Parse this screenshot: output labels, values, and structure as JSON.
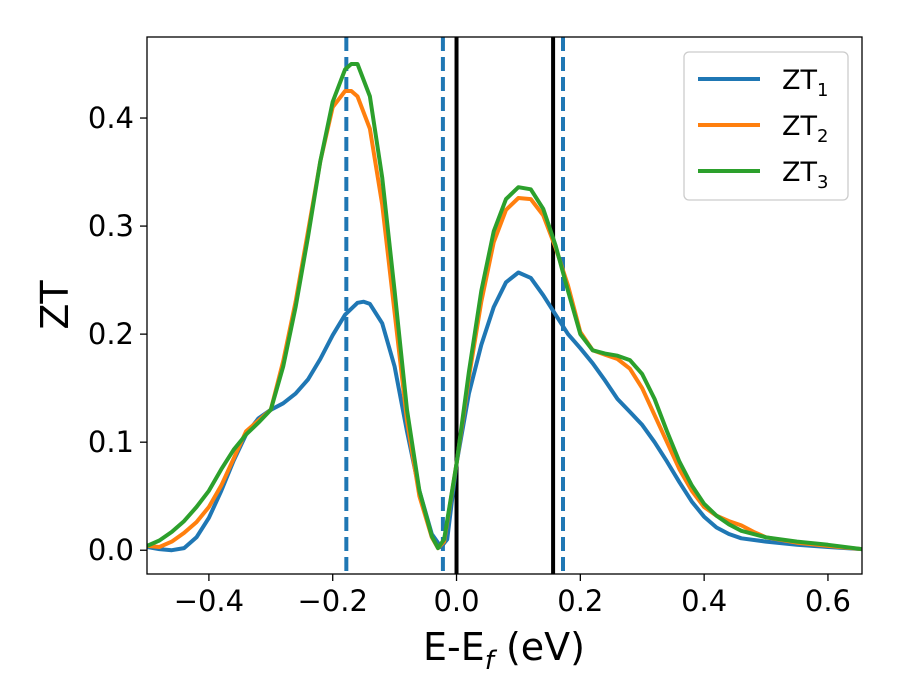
{
  "chart_data": {
    "type": "line",
    "xlabel": "E-E",
    "xlabel_sub": "f",
    "xlabel_unit": " (eV)",
    "ylabel": "ZT",
    "xlim": [
      -0.5,
      0.655
    ],
    "ylim": [
      -0.022,
      0.475
    ],
    "x_ticks": [
      -0.4,
      -0.2,
      0.0,
      0.2,
      0.4,
      0.6
    ],
    "x_tick_labels": [
      "−0.4",
      "−0.2",
      "0.0",
      "0.2",
      "0.4",
      "0.6"
    ],
    "y_ticks": [
      0.0,
      0.1,
      0.2,
      0.3,
      0.4
    ],
    "y_tick_labels": [
      "0.0",
      "0.1",
      "0.2",
      "0.3",
      "0.4"
    ],
    "grid": false,
    "legend_position": "top-right",
    "vlines": [
      {
        "x": -0.178,
        "style": "dashed",
        "color": "#1f77b4"
      },
      {
        "x": -0.022,
        "style": "dashed",
        "color": "#1f77b4"
      },
      {
        "x": 0.0,
        "style": "solid",
        "color": "#000000"
      },
      {
        "x": 0.156,
        "style": "solid",
        "color": "#000000"
      },
      {
        "x": 0.172,
        "style": "dashed",
        "color": "#1f77b4"
      }
    ],
    "series": [
      {
        "name": "ZT",
        "name_sub": "1",
        "color": "#1f77b4",
        "points": [
          [
            -0.5,
            0.003
          ],
          [
            -0.48,
            0.001
          ],
          [
            -0.46,
            0.0
          ],
          [
            -0.44,
            0.002
          ],
          [
            -0.42,
            0.012
          ],
          [
            -0.4,
            0.03
          ],
          [
            -0.38,
            0.055
          ],
          [
            -0.36,
            0.083
          ],
          [
            -0.34,
            0.107
          ],
          [
            -0.32,
            0.122
          ],
          [
            -0.3,
            0.13
          ],
          [
            -0.28,
            0.136
          ],
          [
            -0.26,
            0.145
          ],
          [
            -0.24,
            0.158
          ],
          [
            -0.22,
            0.177
          ],
          [
            -0.2,
            0.199
          ],
          [
            -0.18,
            0.218
          ],
          [
            -0.16,
            0.229
          ],
          [
            -0.15,
            0.23
          ],
          [
            -0.14,
            0.228
          ],
          [
            -0.12,
            0.21
          ],
          [
            -0.1,
            0.17
          ],
          [
            -0.08,
            0.11
          ],
          [
            -0.06,
            0.055
          ],
          [
            -0.04,
            0.015
          ],
          [
            -0.025,
            0.003
          ],
          [
            -0.015,
            0.01
          ],
          [
            0.0,
            0.08
          ],
          [
            0.02,
            0.145
          ],
          [
            0.04,
            0.19
          ],
          [
            0.06,
            0.225
          ],
          [
            0.08,
            0.248
          ],
          [
            0.1,
            0.257
          ],
          [
            0.12,
            0.252
          ],
          [
            0.14,
            0.236
          ],
          [
            0.16,
            0.218
          ],
          [
            0.18,
            0.2
          ],
          [
            0.2,
            0.187
          ],
          [
            0.22,
            0.173
          ],
          [
            0.24,
            0.157
          ],
          [
            0.26,
            0.14
          ],
          [
            0.28,
            0.128
          ],
          [
            0.3,
            0.116
          ],
          [
            0.32,
            0.1
          ],
          [
            0.34,
            0.082
          ],
          [
            0.36,
            0.063
          ],
          [
            0.38,
            0.045
          ],
          [
            0.4,
            0.031
          ],
          [
            0.42,
            0.021
          ],
          [
            0.44,
            0.015
          ],
          [
            0.46,
            0.011
          ],
          [
            0.5,
            0.008
          ],
          [
            0.55,
            0.005
          ],
          [
            0.6,
            0.003
          ],
          [
            0.655,
            0.001
          ]
        ]
      },
      {
        "name": "ZT",
        "name_sub": "2",
        "color": "#ff7f0e",
        "points": [
          [
            -0.5,
            0.004
          ],
          [
            -0.48,
            0.003
          ],
          [
            -0.46,
            0.008
          ],
          [
            -0.44,
            0.016
          ],
          [
            -0.42,
            0.026
          ],
          [
            -0.4,
            0.04
          ],
          [
            -0.38,
            0.06
          ],
          [
            -0.36,
            0.085
          ],
          [
            -0.34,
            0.11
          ],
          [
            -0.32,
            0.12
          ],
          [
            -0.3,
            0.13
          ],
          [
            -0.28,
            0.175
          ],
          [
            -0.26,
            0.23
          ],
          [
            -0.24,
            0.295
          ],
          [
            -0.22,
            0.36
          ],
          [
            -0.2,
            0.41
          ],
          [
            -0.18,
            0.425
          ],
          [
            -0.17,
            0.425
          ],
          [
            -0.16,
            0.42
          ],
          [
            -0.14,
            0.39
          ],
          [
            -0.12,
            0.32
          ],
          [
            -0.1,
            0.22
          ],
          [
            -0.08,
            0.12
          ],
          [
            -0.06,
            0.05
          ],
          [
            -0.04,
            0.012
          ],
          [
            -0.03,
            0.002
          ],
          [
            -0.02,
            0.008
          ],
          [
            0.0,
            0.08
          ],
          [
            0.02,
            0.16
          ],
          [
            0.04,
            0.23
          ],
          [
            0.06,
            0.285
          ],
          [
            0.08,
            0.315
          ],
          [
            0.1,
            0.326
          ],
          [
            0.12,
            0.325
          ],
          [
            0.14,
            0.31
          ],
          [
            0.16,
            0.28
          ],
          [
            0.18,
            0.245
          ],
          [
            0.2,
            0.202
          ],
          [
            0.22,
            0.185
          ],
          [
            0.24,
            0.181
          ],
          [
            0.26,
            0.177
          ],
          [
            0.28,
            0.168
          ],
          [
            0.3,
            0.15
          ],
          [
            0.32,
            0.125
          ],
          [
            0.34,
            0.1
          ],
          [
            0.36,
            0.075
          ],
          [
            0.38,
            0.055
          ],
          [
            0.4,
            0.04
          ],
          [
            0.42,
            0.032
          ],
          [
            0.44,
            0.027
          ],
          [
            0.46,
            0.023
          ],
          [
            0.48,
            0.017
          ],
          [
            0.5,
            0.012
          ],
          [
            0.55,
            0.007
          ],
          [
            0.6,
            0.004
          ],
          [
            0.655,
            0.001
          ]
        ]
      },
      {
        "name": "ZT",
        "name_sub": "3",
        "color": "#2ca02c",
        "points": [
          [
            -0.5,
            0.004
          ],
          [
            -0.48,
            0.009
          ],
          [
            -0.46,
            0.017
          ],
          [
            -0.44,
            0.027
          ],
          [
            -0.42,
            0.04
          ],
          [
            -0.4,
            0.055
          ],
          [
            -0.38,
            0.075
          ],
          [
            -0.36,
            0.093
          ],
          [
            -0.34,
            0.107
          ],
          [
            -0.32,
            0.118
          ],
          [
            -0.3,
            0.13
          ],
          [
            -0.28,
            0.17
          ],
          [
            -0.26,
            0.225
          ],
          [
            -0.24,
            0.29
          ],
          [
            -0.22,
            0.36
          ],
          [
            -0.2,
            0.415
          ],
          [
            -0.18,
            0.445
          ],
          [
            -0.17,
            0.45
          ],
          [
            -0.16,
            0.45
          ],
          [
            -0.14,
            0.42
          ],
          [
            -0.12,
            0.345
          ],
          [
            -0.1,
            0.24
          ],
          [
            -0.08,
            0.13
          ],
          [
            -0.06,
            0.055
          ],
          [
            -0.04,
            0.013
          ],
          [
            -0.03,
            0.002
          ],
          [
            -0.02,
            0.01
          ],
          [
            0.0,
            0.08
          ],
          [
            0.02,
            0.165
          ],
          [
            0.04,
            0.24
          ],
          [
            0.06,
            0.295
          ],
          [
            0.08,
            0.325
          ],
          [
            0.1,
            0.336
          ],
          [
            0.12,
            0.334
          ],
          [
            0.14,
            0.316
          ],
          [
            0.16,
            0.282
          ],
          [
            0.18,
            0.24
          ],
          [
            0.2,
            0.2
          ],
          [
            0.22,
            0.185
          ],
          [
            0.24,
            0.182
          ],
          [
            0.26,
            0.18
          ],
          [
            0.28,
            0.176
          ],
          [
            0.3,
            0.163
          ],
          [
            0.32,
            0.14
          ],
          [
            0.34,
            0.11
          ],
          [
            0.36,
            0.082
          ],
          [
            0.38,
            0.06
          ],
          [
            0.4,
            0.043
          ],
          [
            0.42,
            0.032
          ],
          [
            0.44,
            0.024
          ],
          [
            0.46,
            0.018
          ],
          [
            0.5,
            0.012
          ],
          [
            0.55,
            0.008
          ],
          [
            0.6,
            0.005
          ],
          [
            0.655,
            0.001
          ]
        ]
      }
    ]
  }
}
